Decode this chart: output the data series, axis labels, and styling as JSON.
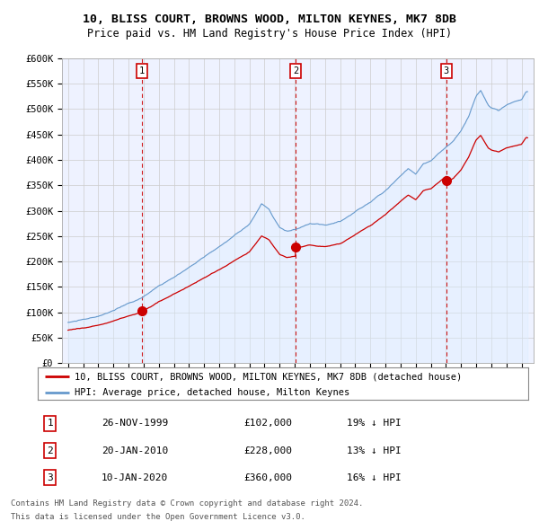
{
  "title": "10, BLISS COURT, BROWNS WOOD, MILTON KEYNES, MK7 8DB",
  "subtitle": "Price paid vs. HM Land Registry's House Price Index (HPI)",
  "legend_line1": "10, BLISS COURT, BROWNS WOOD, MILTON KEYNES, MK7 8DB (detached house)",
  "legend_line2": "HPI: Average price, detached house, Milton Keynes",
  "sale_color": "#cc0000",
  "hpi_color": "#6699cc",
  "hpi_fill_color": "#ddeeff",
  "vline_color": "#cc0000",
  "ylim": [
    0,
    600000
  ],
  "yticks": [
    0,
    50000,
    100000,
    150000,
    200000,
    250000,
    300000,
    350000,
    400000,
    450000,
    500000,
    550000,
    600000
  ],
  "ytick_labels": [
    "£0",
    "£50K",
    "£100K",
    "£150K",
    "£200K",
    "£250K",
    "£300K",
    "£350K",
    "£400K",
    "£450K",
    "£500K",
    "£550K",
    "£600K"
  ],
  "sales": [
    {
      "date": 1999.9,
      "price": 102000,
      "label": "1"
    },
    {
      "date": 2010.05,
      "price": 228000,
      "label": "2"
    },
    {
      "date": 2020.03,
      "price": 360000,
      "label": "3"
    }
  ],
  "annotations": [
    {
      "num": "1",
      "date": "26-NOV-1999",
      "price": "£102,000",
      "pct": "19% ↓ HPI"
    },
    {
      "num": "2",
      "date": "20-JAN-2010",
      "price": "£228,000",
      "pct": "13% ↓ HPI"
    },
    {
      "num": "3",
      "date": "10-JAN-2020",
      "price": "£360,000",
      "pct": "16% ↓ HPI"
    }
  ],
  "footnote1": "Contains HM Land Registry data © Crown copyright and database right 2024.",
  "footnote2": "This data is licensed under the Open Government Licence v3.0.",
  "plot_bg": "#eef2ff",
  "fig_bg": "#ffffff",
  "title_fontsize": 9.5,
  "subtitle_fontsize": 8.5,
  "tick_fontsize": 7.5,
  "legend_fontsize": 7.5,
  "ann_fontsize": 8.0,
  "footnote_fontsize": 6.5
}
